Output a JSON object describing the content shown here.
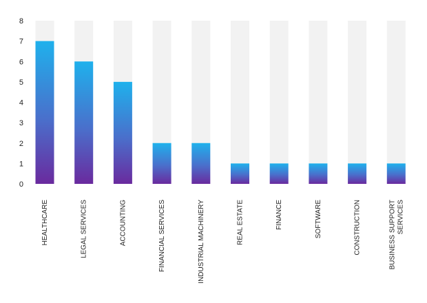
{
  "chart_data": {
    "type": "bar",
    "categories": [
      "HEALTHCARE",
      "LEGAL SERVICES",
      "ACCOUNTING",
      "FINANCIAL SERVICES",
      "INDUSTRIAL MACHINERY",
      "REAL ESTATE",
      "FINANCE",
      "SOFTWARE",
      "CONSTRUCTION",
      "BUSINESS SUPPORT SERVICES"
    ],
    "values": [
      7,
      6,
      5,
      2,
      2,
      1,
      1,
      1,
      1,
      1
    ],
    "ylim": [
      0,
      8
    ],
    "yticks": [
      "0",
      "1",
      "2",
      "3",
      "4",
      "5",
      "6",
      "7",
      "8"
    ],
    "background_fill_to": 8,
    "grid": false,
    "legend": "none",
    "colors": {
      "bar_top": "#1fb1ec",
      "bar_mid": "#4a6fcb",
      "bar_bottom": "#6a2a9e",
      "track": "#f2f2f2",
      "text": "#222222"
    }
  }
}
